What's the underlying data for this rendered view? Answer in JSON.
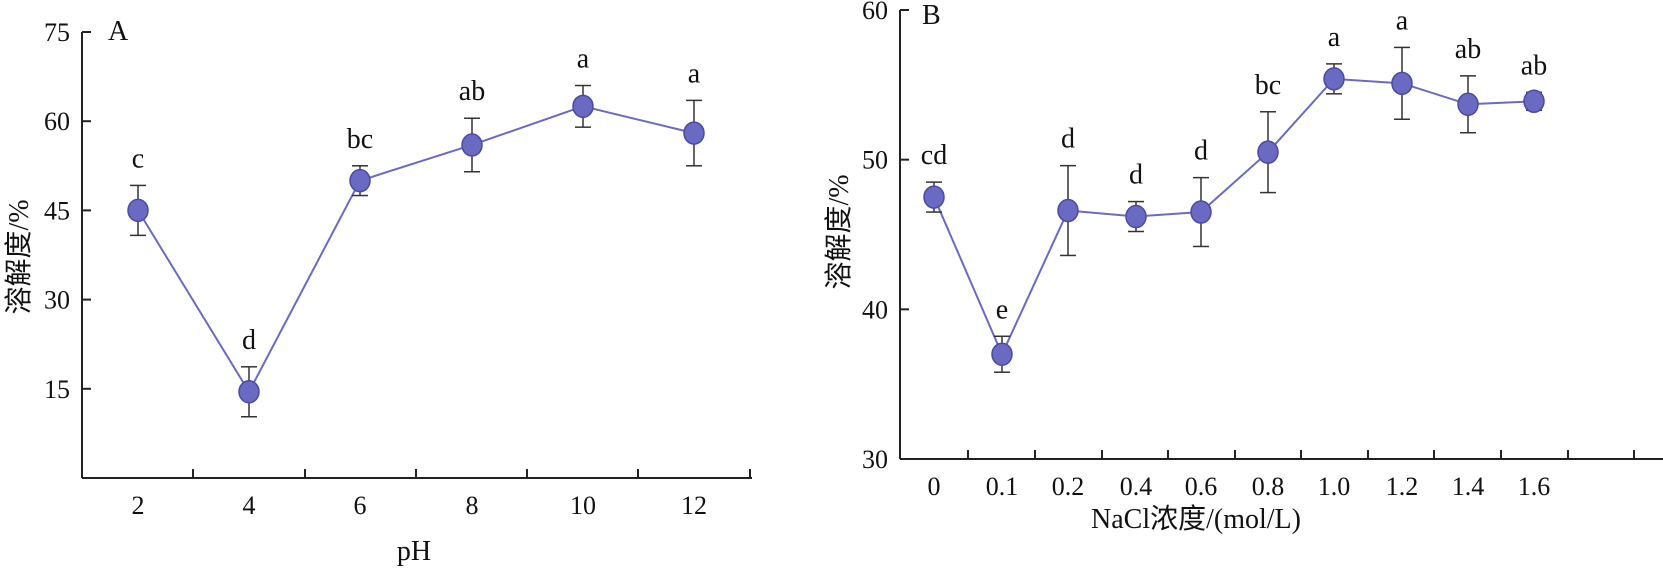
{
  "colors": {
    "marker": "#6a6ac2",
    "marker_edge": "#4a4aa6",
    "line": "#6a6ac2",
    "axis": "#222222"
  },
  "chart_data": [
    {
      "type": "line",
      "panel_label": "A",
      "xlabel": "pH",
      "ylabel": "溶解度/%",
      "ylim": [
        0,
        75
      ],
      "yticks": [
        15,
        30,
        45,
        60,
        75
      ],
      "grid": false,
      "categories": [
        "2",
        "4",
        "6",
        "8",
        "10",
        "12"
      ],
      "series": [
        {
          "values": [
            45,
            14.5,
            50,
            56,
            62.5,
            58
          ],
          "error": [
            4.2,
            4.2,
            2.5,
            4.5,
            3.5,
            5.5
          ],
          "labels": [
            "c",
            "d",
            "bc",
            "ab",
            "a",
            "a"
          ]
        }
      ]
    },
    {
      "type": "line",
      "panel_label": "B",
      "xlabel": "NaCl浓度/(mol/L)",
      "ylabel": "溶解度/%",
      "ylim": [
        30,
        60
      ],
      "yticks": [
        30,
        40,
        50,
        60
      ],
      "grid": false,
      "categories": [
        "0",
        "0.1",
        "0.2",
        "0.4",
        "0.6",
        "0.8",
        "1.0",
        "1.2",
        "1.4",
        "1.6"
      ],
      "series": [
        {
          "values": [
            47.5,
            37,
            46.6,
            46.2,
            46.5,
            50.5,
            55.4,
            55.1,
            53.7,
            53.9
          ],
          "error": [
            1.0,
            1.2,
            3.0,
            1.0,
            2.3,
            2.7,
            1.0,
            2.4,
            1.9,
            0.6
          ],
          "labels": [
            "cd",
            "e",
            "d",
            "d",
            "d",
            "bc",
            "a",
            "a",
            "ab",
            "ab"
          ]
        }
      ]
    }
  ]
}
